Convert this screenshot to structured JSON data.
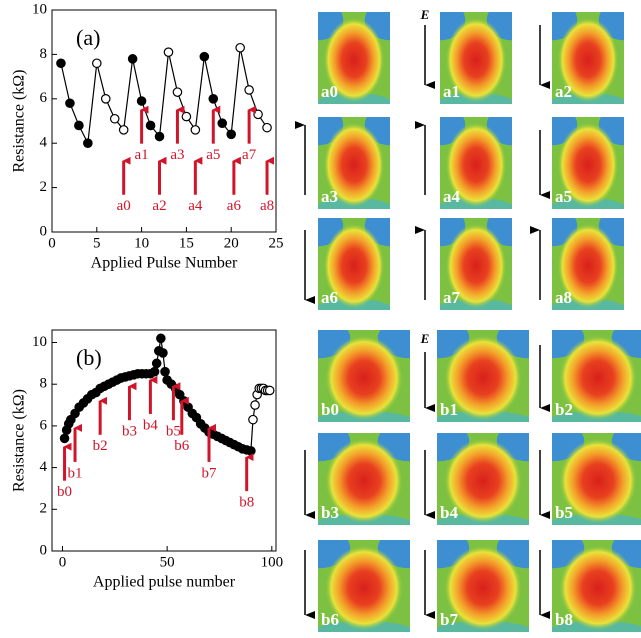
{
  "chart_data": [
    {
      "type": "line",
      "title": "(a)",
      "x_label": "Applied Pulse Number",
      "y_label": "Resistance (kΩ)",
      "x": [
        1,
        2,
        3,
        4,
        5,
        6,
        7,
        8,
        9,
        10,
        11,
        12,
        13,
        14,
        15,
        16,
        17,
        18,
        19,
        20,
        21,
        22,
        23,
        24
      ],
      "values": [
        7.6,
        5.8,
        4.8,
        4.0,
        7.6,
        6.0,
        5.1,
        4.6,
        7.8,
        5.9,
        4.8,
        4.3,
        8.1,
        6.3,
        5.2,
        4.6,
        7.9,
        6.0,
        4.9,
        4.4,
        8.3,
        6.4,
        5.3,
        4.7
      ],
      "filled": [
        true,
        true,
        true,
        true,
        false,
        false,
        false,
        false,
        true,
        true,
        true,
        true,
        false,
        false,
        false,
        false,
        true,
        true,
        true,
        true,
        false,
        false,
        false,
        false
      ],
      "color": "#000000",
      "annotation_color": "#d0152a",
      "xlim": [
        0,
        25
      ],
      "xticks": [
        0,
        5,
        10,
        15,
        20,
        25
      ],
      "ylim": [
        0,
        10
      ],
      "yticks": [
        0,
        2,
        4,
        6,
        8,
        10
      ],
      "annotations": [
        {
          "text": "a0",
          "x": 8,
          "y": 3.3
        },
        {
          "text": "a1",
          "x": 10,
          "y": 5.6
        },
        {
          "text": "a2",
          "x": 12,
          "y": 3.3
        },
        {
          "text": "a3",
          "x": 14,
          "y": 5.6
        },
        {
          "text": "a4",
          "x": 16,
          "y": 3.3
        },
        {
          "text": "a5",
          "x": 18,
          "y": 5.6
        },
        {
          "text": "a6",
          "x": 20.3,
          "y": 3.3
        },
        {
          "text": "a7",
          "x": 22,
          "y": 5.6
        },
        {
          "text": "a8",
          "x": 24,
          "y": 3.3
        }
      ]
    },
    {
      "type": "line",
      "title": "(b)",
      "x_label": "Applied pulse number",
      "y_label": "Resistance (kΩ)",
      "x": [
        1,
        2,
        3,
        4,
        6,
        8,
        10,
        12,
        14,
        16,
        18,
        20,
        22,
        24,
        26,
        28,
        30,
        32,
        34,
        36,
        38,
        40,
        42,
        44,
        45,
        46,
        47,
        48,
        49,
        50,
        52,
        54,
        56,
        58,
        60,
        62,
        64,
        66,
        68,
        70,
        72,
        74,
        76,
        78,
        80,
        82,
        84,
        86,
        88,
        90,
        91,
        92,
        93,
        94,
        95,
        96,
        97,
        98,
        99
      ],
      "values": [
        5.4,
        5.8,
        6.1,
        6.3,
        6.6,
        6.9,
        7.1,
        7.3,
        7.5,
        7.6,
        7.8,
        7.9,
        8.0,
        8.1,
        8.2,
        8.3,
        8.35,
        8.4,
        8.45,
        8.5,
        8.5,
        8.5,
        8.5,
        8.6,
        9.0,
        9.6,
        10.2,
        9.5,
        8.6,
        8.2,
        8.0,
        7.8,
        7.5,
        7.2,
        6.9,
        6.6,
        6.4,
        6.1,
        5.9,
        5.7,
        5.6,
        5.5,
        5.4,
        5.3,
        5.2,
        5.1,
        5.0,
        4.9,
        4.85,
        4.8,
        6.3,
        7.0,
        7.5,
        7.8,
        7.8,
        7.8,
        7.7,
        7.7,
        7.7
      ],
      "filled": [
        true,
        true,
        true,
        true,
        true,
        true,
        true,
        true,
        true,
        true,
        true,
        true,
        true,
        true,
        true,
        true,
        true,
        true,
        true,
        true,
        true,
        true,
        true,
        true,
        true,
        true,
        true,
        true,
        true,
        true,
        true,
        true,
        true,
        true,
        true,
        true,
        true,
        true,
        true,
        true,
        true,
        true,
        true,
        true,
        true,
        true,
        true,
        true,
        true,
        true,
        false,
        false,
        false,
        false,
        false,
        false,
        false,
        false,
        false
      ],
      "color": "#000000",
      "annotation_color": "#d0152a",
      "xlim": [
        -5,
        102
      ],
      "xticks": [
        0,
        50,
        100
      ],
      "ylim": [
        0,
        10.6
      ],
      "yticks": [
        0,
        2,
        4,
        6,
        8,
        10
      ],
      "annotations": [
        {
          "text": "b0",
          "x": 1,
          "y": 5.1
        },
        {
          "text": "b1",
          "x": 6,
          "y": 6.0
        },
        {
          "text": "b2",
          "x": 18,
          "y": 7.3
        },
        {
          "text": "b3",
          "x": 32,
          "y": 8.0
        },
        {
          "text": "b4",
          "x": 42,
          "y": 8.3
        },
        {
          "text": "b5",
          "x": 53,
          "y": 8.0
        },
        {
          "text": "b6",
          "x": 57,
          "y": 7.3
        },
        {
          "text": "b7",
          "x": 70,
          "y": 6.0
        },
        {
          "text": "b8",
          "x": 88,
          "y": 4.6
        }
      ]
    }
  ],
  "panels": {
    "a": [
      "a0",
      "a1",
      "a2",
      "a3",
      "a4",
      "a5",
      "a6",
      "a7",
      "a8"
    ],
    "b": [
      "b0",
      "b1",
      "b2",
      "b3",
      "b4",
      "b5",
      "b6",
      "b7",
      "b8"
    ]
  },
  "field_label": "E"
}
